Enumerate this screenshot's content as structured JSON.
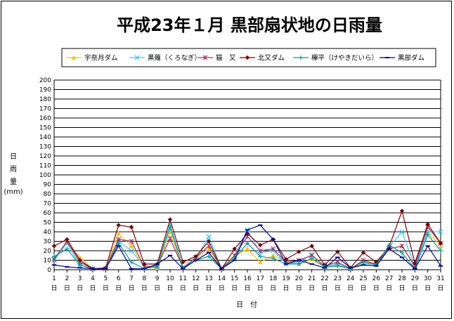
{
  "chart_data": {
    "type": "line",
    "title": "平成23年１月  黒部扇状地の日雨量",
    "ylabel_chars": [
      "日",
      "雨",
      "量",
      "(mm)"
    ],
    "xlabel": "日　付",
    "x_day_suffix": "日",
    "ylim": [
      0,
      200
    ],
    "ytick_step": 10,
    "grid": true,
    "legend_position": "top",
    "categories": [
      1,
      2,
      3,
      4,
      5,
      6,
      7,
      8,
      9,
      10,
      11,
      12,
      13,
      14,
      15,
      16,
      17,
      18,
      19,
      20,
      21,
      22,
      23,
      24,
      25,
      26,
      27,
      28,
      29,
      30,
      31
    ],
    "series": [
      {
        "name": "宇奈月ダム",
        "color": "#ffc000",
        "marker": "triangle",
        "values": [
          12,
          28,
          13,
          1,
          1,
          38,
          25,
          2,
          2,
          40,
          2,
          12,
          22,
          1,
          14,
          22,
          8,
          15,
          8,
          6,
          11,
          3,
          5,
          1,
          9,
          5,
          22,
          25,
          3,
          40,
          25
        ]
      },
      {
        "name": "黒薙（くろなぎ）",
        "color": "#33ccff",
        "marker": "x",
        "values": [
          10,
          28,
          5,
          1,
          1,
          30,
          20,
          3,
          3,
          48,
          2,
          12,
          35,
          1,
          15,
          42,
          18,
          20,
          6,
          8,
          16,
          3,
          6,
          1,
          6,
          6,
          24,
          40,
          3,
          40,
          40
        ]
      },
      {
        "name": "猫　又",
        "color": "#993366",
        "marker": "star",
        "values": [
          11,
          30,
          8,
          1,
          1,
          32,
          30,
          3,
          4,
          33,
          2,
          13,
          25,
          1,
          15,
          35,
          20,
          22,
          8,
          10,
          15,
          4,
          8,
          1,
          10,
          6,
          22,
          25,
          4,
          45,
          28
        ]
      },
      {
        "name": "北又ダム",
        "color": "#800000",
        "marker": "diamond",
        "values": [
          25,
          32,
          10,
          1,
          2,
          47,
          45,
          6,
          6,
          53,
          8,
          14,
          30,
          1,
          22,
          38,
          26,
          32,
          11,
          19,
          25,
          5,
          19,
          2,
          18,
          8,
          24,
          62,
          7,
          48,
          28
        ]
      },
      {
        "name": "欅平（けやきだいら）",
        "color": "#009999",
        "marker": "plus",
        "values": [
          14,
          22,
          5,
          1,
          1,
          28,
          8,
          1,
          4,
          45,
          2,
          10,
          14,
          1,
          12,
          28,
          14,
          12,
          6,
          6,
          12,
          3,
          4,
          1,
          8,
          5,
          26,
          18,
          1,
          37,
          20
        ]
      },
      {
        "name": "黒部ダム",
        "color": "#000099",
        "marker": "dash",
        "values": [
          5,
          3,
          2,
          1,
          1,
          25,
          1,
          1,
          6,
          15,
          1,
          10,
          18,
          1,
          10,
          42,
          47,
          32,
          6,
          10,
          6,
          2,
          13,
          2,
          5,
          4,
          22,
          13,
          1,
          25,
          4
        ]
      }
    ]
  }
}
